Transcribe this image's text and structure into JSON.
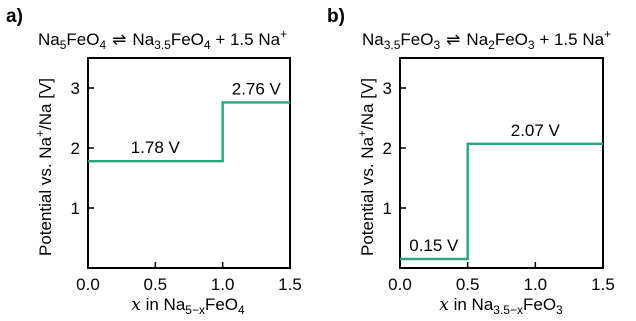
{
  "accent_color": "#2aa47f",
  "chart_data": [
    {
      "type": "line",
      "panel_label": "a)",
      "title": {
        "left_base": "Na",
        "left_sub": "5",
        "left_mid": "FeO",
        "left_sub2": "4",
        "arrow": "⇌",
        "right_base": "Na",
        "right_sub": "3.5",
        "right_mid": "FeO",
        "right_sub2": "4",
        "tail": " + 1.5 Na",
        "tail_sup": "+"
      },
      "xlabel": {
        "var": "x",
        "pre": " in Na",
        "sub": "5−x",
        "post": "FeO",
        "sub2": "4"
      },
      "ylabel": {
        "pre": "Potential vs. Na",
        "sup": "+",
        "post": "/Na [V]"
      },
      "xlim": [
        0,
        1.5
      ],
      "ylim": [
        0,
        3.5
      ],
      "xticks": [
        0.0,
        0.5,
        1.0,
        1.5
      ],
      "xtick_labels": [
        "0.0",
        "0.5",
        "1.0",
        "1.5"
      ],
      "yticks": [
        1,
        2,
        3
      ],
      "ytick_labels": [
        "1",
        "2",
        "3"
      ],
      "series": [
        {
          "x": [
            0,
            1.0,
            1.0,
            1.5
          ],
          "y": [
            1.78,
            1.78,
            2.76,
            2.76
          ]
        }
      ],
      "annotations": [
        {
          "text": "1.78 V",
          "x": 0.5,
          "y": 1.78
        },
        {
          "text": "2.76 V",
          "x": 1.25,
          "y": 2.76
        }
      ],
      "grid": false
    },
    {
      "type": "line",
      "panel_label": "b)",
      "title": {
        "left_base": "Na",
        "left_sub": "3.5",
        "left_mid": "FeO",
        "left_sub2": "3",
        "arrow": "⇌",
        "right_base": "Na",
        "right_sub": "2",
        "right_mid": "FeO",
        "right_sub2": "3",
        "tail": " + 1.5 Na",
        "tail_sup": "+"
      },
      "xlabel": {
        "var": "x",
        "pre": " in Na",
        "sub": "3.5−x",
        "post": "FeO",
        "sub2": "3"
      },
      "ylabel": {
        "pre": "Potential vs. Na",
        "sup": "+",
        "post": "/Na [V]"
      },
      "xlim": [
        0,
        1.5
      ],
      "ylim": [
        0,
        3.5
      ],
      "xticks": [
        0.0,
        0.5,
        1.0,
        1.5
      ],
      "xtick_labels": [
        "0.0",
        "0.5",
        "1.0",
        "1.5"
      ],
      "yticks": [
        1,
        2,
        3
      ],
      "ytick_labels": [
        "1",
        "2",
        "3"
      ],
      "series": [
        {
          "x": [
            0,
            0.5,
            0.5,
            1.5
          ],
          "y": [
            0.15,
            0.15,
            2.07,
            2.07
          ]
        }
      ],
      "annotations": [
        {
          "text": "0.15 V",
          "x": 0.25,
          "y": 0.15
        },
        {
          "text": "2.07 V",
          "x": 1.0,
          "y": 2.07
        }
      ],
      "grid": false
    }
  ]
}
